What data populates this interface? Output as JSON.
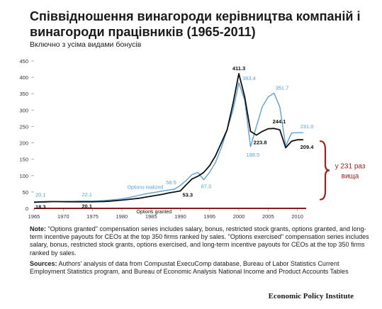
{
  "title": "Співвідношення винагороди керівництва компаній і винагороди працівників (1965-2011)",
  "subtitle": "Включно з усіма видами бонусів",
  "chart_data": {
    "type": "line",
    "x": [
      1965,
      1966,
      1967,
      1968,
      1969,
      1970,
      1971,
      1972,
      1973,
      1974,
      1975,
      1976,
      1977,
      1978,
      1979,
      1980,
      1981,
      1982,
      1983,
      1984,
      1985,
      1986,
      1987,
      1988,
      1989,
      1990,
      1991,
      1992,
      1993,
      1994,
      1995,
      1996,
      1997,
      1998,
      1999,
      2000,
      2001,
      2002,
      2003,
      2004,
      2005,
      2006,
      2007,
      2008,
      2009,
      2010,
      2011
    ],
    "series": [
      {
        "name": "Options realized",
        "color": "#5aa0d8",
        "values": [
          20.1,
          20.5,
          21,
          21.2,
          21.3,
          21.2,
          21.3,
          21.5,
          22,
          22.1,
          22.1,
          23,
          24,
          25.5,
          27,
          29,
          32,
          36,
          40,
          44,
          47,
          50,
          53,
          56,
          58.5,
          70,
          85,
          103,
          110,
          87.3,
          110,
          140,
          185,
          240,
          300,
          383.4,
          330,
          188.5,
          250,
          310,
          340,
          351.7,
          310,
          190,
          230,
          231,
          231
        ]
      },
      {
        "name": "Options granted",
        "color": "#111111",
        "values": [
          18.3,
          19.5,
          20,
          20.5,
          20.5,
          20.3,
          20.2,
          20.2,
          20.1,
          20.1,
          20.1,
          20.5,
          21,
          22,
          23.5,
          25,
          27,
          29,
          31,
          34,
          37,
          40,
          43,
          47,
          50,
          53.3,
          72,
          90,
          98,
          110,
          130,
          160,
          200,
          240,
          320,
          411.3,
          340,
          235,
          223.8,
          235,
          243,
          244.1,
          240,
          185,
          205,
          209.4,
          209.4
        ]
      }
    ],
    "xticks": [
      1965,
      1970,
      1975,
      1980,
      1985,
      1990,
      1995,
      2000,
      2005,
      2010
    ],
    "yticks": [
      0,
      50,
      100,
      150,
      200,
      250,
      300,
      350,
      400,
      450
    ],
    "xlim": [
      1965,
      2011.5
    ],
    "ylim": [
      0,
      450
    ],
    "data_labels": [
      {
        "text": "20.1",
        "x": 1965,
        "y": 20.1,
        "series": "Options realized"
      },
      {
        "text": "18.3",
        "x": 1965,
        "y": 18.3,
        "series": "Options granted"
      },
      {
        "text": "22.1",
        "x": 1974,
        "y": 22.1,
        "series": "Options realized"
      },
      {
        "text": "20.1",
        "x": 1974,
        "y": 20.1,
        "series": "Options granted"
      },
      {
        "text": "58.5",
        "x": 1989,
        "y": 58.5,
        "series": "Options realized"
      },
      {
        "text": "53.3",
        "x": 1990,
        "y": 53.3,
        "series": "Options granted"
      },
      {
        "text": "87.3",
        "x": 1994,
        "y": 87.3,
        "series": "Options realized"
      },
      {
        "text": "411.3",
        "x": 2000,
        "y": 411.3,
        "series": "Options granted"
      },
      {
        "text": "383.4",
        "x": 2000,
        "y": 383.4,
        "series": "Options realized"
      },
      {
        "text": "188.5",
        "x": 2002,
        "y": 188.5,
        "series": "Options realized"
      },
      {
        "text": "223.8",
        "x": 2003,
        "y": 223.8,
        "series": "Options granted"
      },
      {
        "text": "351.7",
        "x": 2006,
        "y": 351.7,
        "series": "Options realized"
      },
      {
        "text": "244.1",
        "x": 2006,
        "y": 244.1,
        "series": "Options granted"
      },
      {
        "text": "231.0",
        "x": 2010,
        "y": 231.0,
        "series": "Options realized"
      },
      {
        "text": "209.4",
        "x": 2010,
        "y": 209.4,
        "series": "Options granted"
      }
    ],
    "annotation": {
      "lines": [
        "у 231 раз",
        "вища"
      ],
      "color": "#a02020"
    },
    "axis_color": "#8b1a1a"
  },
  "notes": {
    "note_label": "Note:",
    "note_text": "\"Options granted\" compensation series includes salary, bonus, restricted stock grants, options granted, and long-term incentive payouts for CEOs at the top 350 firms ranked by sales. \"Options exercised\" compensation series includes salary, bonus, restricted stock grants, options exercised, and long-term incentive payouts for CEOs at the top 350 firms ranked by sales.",
    "sources_label": "Sources:",
    "sources_text": "Authors' analysis of data from Compustat ExecuComp database, Bureau of Labor Statistics Current Employment Statistics program, and Bureau of Economic Analysis National Income and Product Accounts Tables"
  },
  "publisher": "Economic Policy Institute"
}
